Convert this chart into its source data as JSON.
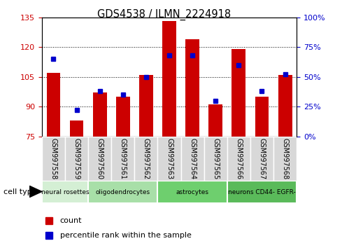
{
  "title": "GDS4538 / ILMN_2224918",
  "samples": [
    "GSM997558",
    "GSM997559",
    "GSM997560",
    "GSM997561",
    "GSM997562",
    "GSM997563",
    "GSM997564",
    "GSM997565",
    "GSM997566",
    "GSM997567",
    "GSM997568"
  ],
  "counts": [
    107,
    83,
    97,
    95,
    106,
    133,
    124,
    91,
    119,
    95,
    106
  ],
  "percentiles": [
    65,
    22,
    38,
    35,
    50,
    68,
    68,
    30,
    60,
    38,
    52
  ],
  "ylim_left": [
    75,
    135
  ],
  "ylim_right": [
    0,
    100
  ],
  "yticks_left": [
    75,
    90,
    105,
    120,
    135
  ],
  "yticks_right": [
    0,
    25,
    50,
    75,
    100
  ],
  "bar_color": "#cc0000",
  "marker_color": "#0000cc",
  "bar_width": 0.6,
  "tick_color_left": "#cc0000",
  "tick_color_right": "#0000cc",
  "cell_groups": [
    {
      "start": 0,
      "end": 2,
      "label": "neural rosettes",
      "color": "#d4efd4"
    },
    {
      "start": 2,
      "end": 5,
      "label": "oligodendrocytes",
      "color": "#a8dfa8"
    },
    {
      "start": 5,
      "end": 8,
      "label": "astrocytes",
      "color": "#6ecf6e"
    },
    {
      "start": 8,
      "end": 11,
      "label": "neurons CD44- EGFR-",
      "color": "#5aba5a"
    }
  ],
  "legend_items": [
    {
      "label": "count",
      "color": "#cc0000"
    },
    {
      "label": "percentile rank within the sample",
      "color": "#0000cc"
    }
  ]
}
